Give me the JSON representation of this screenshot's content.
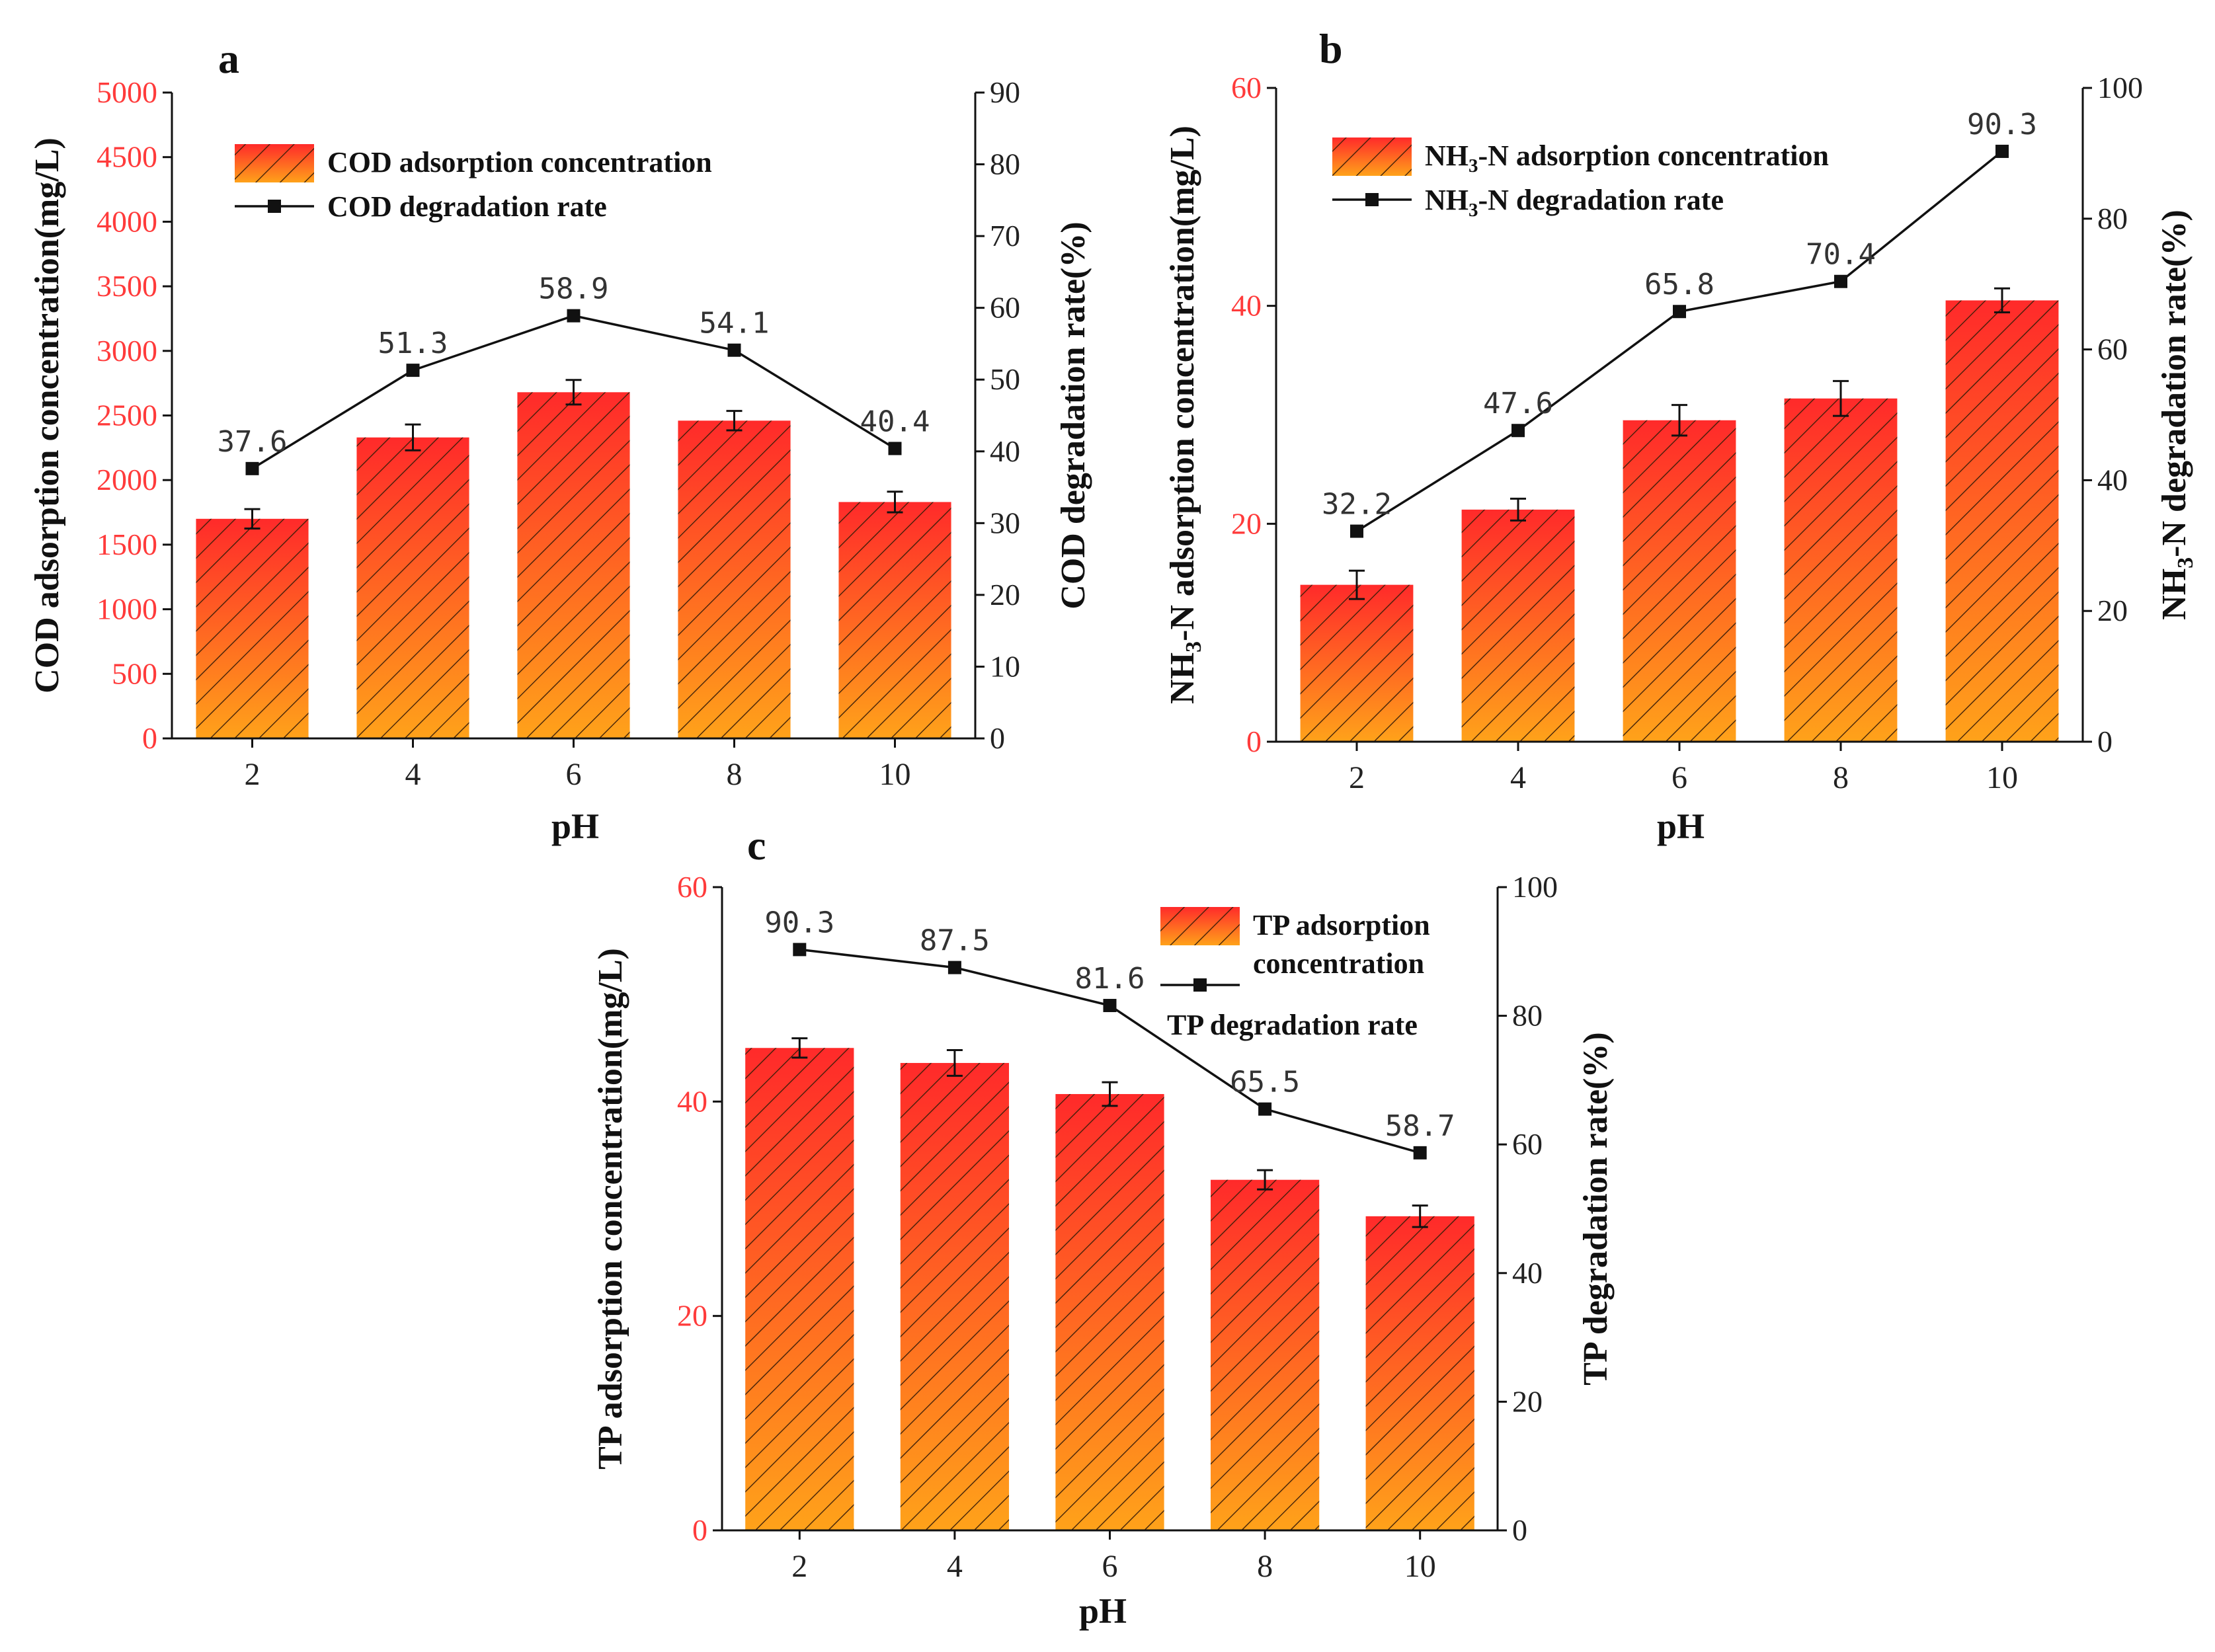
{
  "chart_data": [
    {
      "id": "a",
      "panel_label": "a",
      "type": "bar",
      "categories": [
        "2",
        "4",
        "6",
        "8",
        "10"
      ],
      "xlabel": "pH",
      "bars": {
        "name": "COD adsorption concentration",
        "values": [
          1700,
          2330,
          2680,
          2460,
          1830
        ],
        "errors": [
          75,
          100,
          95,
          75,
          80
        ]
      },
      "line": {
        "name": "COD degradation rate",
        "values": [
          37.6,
          51.3,
          58.9,
          54.1,
          40.4
        ],
        "labels": [
          "37.6",
          "51.3",
          "58.9",
          "54.1",
          "40.4"
        ]
      },
      "ylabel_left": "COD adsorption concentration(mg/L)",
      "ylim_left": [
        0,
        5000
      ],
      "yticks_left": [
        "0",
        "500",
        "1000",
        "1500",
        "2000",
        "2500",
        "3000",
        "3500",
        "4000",
        "4500",
        "5000"
      ],
      "ylabel_right": "COD degradation rate(%)",
      "ylim_right": [
        0,
        90
      ],
      "yticks_right": [
        "0",
        "10",
        "20",
        "30",
        "40",
        "50",
        "60",
        "70",
        "80",
        "90"
      ],
      "legend_placement": "top-left",
      "left_tick_color": "#ff3b3b"
    },
    {
      "id": "b",
      "panel_label": "b",
      "type": "bar",
      "categories": [
        "2",
        "4",
        "6",
        "8",
        "10"
      ],
      "xlabel": "pH",
      "bars": {
        "name": "NH3-N adsorption concentration",
        "values": [
          14.4,
          21.3,
          29.5,
          31.5,
          40.5
        ],
        "errors": [
          1.3,
          1.0,
          1.4,
          1.6,
          1.1
        ]
      },
      "line": {
        "name": "NH3-N degradation rate",
        "values": [
          32.2,
          47.6,
          65.8,
          70.4,
          90.3
        ],
        "labels": [
          "32.2",
          "47.6",
          "65.8",
          "70.4",
          "90.3"
        ]
      },
      "ylabel_left": "NH3-N adsorption concentration(mg/L)",
      "ylim_left": [
        0,
        60
      ],
      "yticks_left": [
        "0",
        "20",
        "40",
        "60"
      ],
      "ylabel_right": "NH3-N degradation rate(%)",
      "ylim_right": [
        0,
        100
      ],
      "yticks_right": [
        "0",
        "20",
        "40",
        "60",
        "80",
        "100"
      ],
      "legend_placement": "top-left",
      "left_tick_color": "#ff3b3b"
    },
    {
      "id": "c",
      "panel_label": "c",
      "type": "bar",
      "categories": [
        "2",
        "4",
        "6",
        "8",
        "10"
      ],
      "xlabel": "pH",
      "bars": {
        "name": "TP adsorption concentration",
        "values": [
          45.0,
          43.6,
          40.7,
          32.7,
          29.3
        ],
        "errors": [
          0.9,
          1.2,
          1.1,
          0.9,
          1.0
        ]
      },
      "line": {
        "name": "TP degradation rate",
        "values": [
          90.3,
          87.5,
          81.6,
          65.5,
          58.7
        ],
        "labels": [
          "90.3",
          "87.5",
          "81.6",
          "65.5",
          "58.7"
        ]
      },
      "ylabel_left": "TP adsorption concentration(mg/L)",
      "ylim_left": [
        0,
        60
      ],
      "yticks_left": [
        "0",
        "20",
        "40",
        "60"
      ],
      "ylabel_right": "TP degradation rate(%)",
      "ylim_right": [
        0,
        100
      ],
      "yticks_right": [
        "0",
        "20",
        "40",
        "60",
        "80",
        "100"
      ],
      "legend_placement": "top-right",
      "left_tick_color": "#ff3b3b"
    }
  ]
}
